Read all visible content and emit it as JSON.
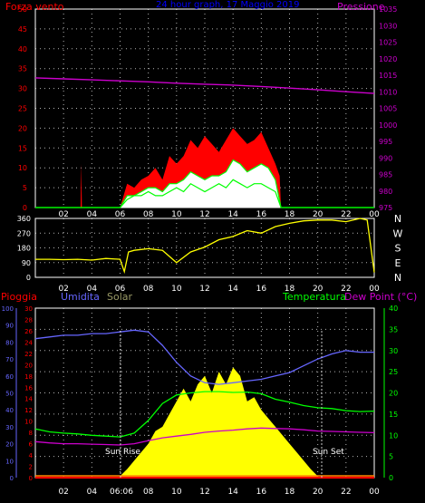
{
  "top": {
    "title": "24 hour graph, 17 Maggio 2019",
    "left_label": "Forza vento",
    "right_label": "Pressione",
    "left_ticks": [
      "0",
      "5",
      "10",
      "15",
      "20",
      "25",
      "30",
      "35",
      "40",
      "45",
      "50"
    ],
    "right_ticks": [
      "975",
      "980",
      "985",
      "990",
      "995",
      "1000",
      "1005",
      "1010",
      "1015",
      "1020",
      "1025",
      "1030",
      "1035"
    ]
  },
  "middle": {
    "left_ticks": [
      "0",
      "90",
      "180",
      "270",
      "360"
    ],
    "right_letters": [
      "N",
      "W",
      "S",
      "E",
      "N"
    ]
  },
  "bottom": {
    "label_pioggia": "Pioggia",
    "label_umidita": "Umidita",
    "label_solar": "Solar",
    "label_temperatura": "Temperatura",
    "label_dewpoint": "Dew Point (°C)",
    "rain_ticks": [
      "0",
      "2",
      "4",
      "6",
      "8",
      "10",
      "12",
      "14",
      "16",
      "18",
      "20",
      "22",
      "24",
      "26",
      "28",
      "30"
    ],
    "hum_ticks": [
      "0",
      "10",
      "20",
      "30",
      "40",
      "50",
      "60",
      "70",
      "80",
      "90",
      "100"
    ],
    "temp_ticks": [
      "0",
      "5",
      "10",
      "15",
      "20",
      "25",
      "30",
      "35",
      "40"
    ],
    "sun_rise": "Sun Rise",
    "sun_set": "Sun Set",
    "time_marker": "06:06"
  },
  "x_tick_labels": [
    "02",
    "04",
    "06",
    "08",
    "10",
    "12",
    "14",
    "16",
    "18",
    "20",
    "22",
    "00"
  ],
  "colors": {
    "background": "#000000",
    "frame": "#ffffff",
    "grid": "#ffffff",
    "wind_gust": "#ff0000",
    "wind_avg": "#00ff00",
    "wind_speed": "#ffffff",
    "pressure": "#cc00cc",
    "direction": "#ffff00",
    "humidity": "#6666ff",
    "solar": "#ffff00",
    "temperature": "#00ff00",
    "dewpoint": "#cc00cc",
    "rain": "#ff0000",
    "title": "#0000ff",
    "left_labels": "#ff0000",
    "right_labels": "#cc00cc",
    "solar_label": "#999966",
    "temp_axis": "#00ff00",
    "hum_axis": "#6666ff"
  },
  "chart_data": [
    {
      "type": "line",
      "title": "24 hour graph, 17 Maggio 2019",
      "xlabel": "",
      "ylabel": "Forza vento",
      "y2label": "Pressione",
      "x_hours": [
        0,
        24
      ],
      "ylim": [
        0,
        50
      ],
      "y2lim": [
        975,
        1035
      ],
      "series": [
        {
          "name": "Pressione",
          "axis": "right",
          "x": [
            0,
            2,
            4,
            6,
            8,
            10,
            12,
            14,
            16,
            18,
            20,
            22,
            24
          ],
          "values": [
            1014.2,
            1013.9,
            1013.6,
            1013.3,
            1013.0,
            1012.6,
            1012.3,
            1012.0,
            1011.6,
            1011.1,
            1010.6,
            1010.0,
            1009.5
          ]
        },
        {
          "name": "Forza vento",
          "axis": "left",
          "x": [
            0,
            3.2,
            3.25,
            3.3,
            6.0,
            6.5,
            7.0,
            7.5,
            8.0,
            8.5,
            9.0,
            9.5,
            10.0,
            10.5,
            11.0,
            11.5,
            12.0,
            12.5,
            13.0,
            13.5,
            14.0,
            14.5,
            15.0,
            15.5,
            16.0,
            16.5,
            17.0,
            17.3,
            17.4,
            24
          ],
          "values": [
            0,
            0,
            11,
            0,
            0,
            6,
            5,
            7,
            8,
            10,
            7,
            13,
            11,
            13,
            17,
            15,
            18,
            16,
            14,
            17,
            20,
            18,
            16,
            17,
            19,
            15,
            11,
            8,
            0,
            0
          ]
        },
        {
          "x": [
            0,
            6.0,
            6.5,
            7.0,
            7.5,
            8.0,
            8.5,
            9.0,
            9.5,
            10.0,
            10.5,
            11.0,
            11.5,
            12.0,
            12.5,
            13.0,
            13.5,
            14.0,
            14.5,
            15.0,
            15.5,
            16.0,
            16.5,
            17.0,
            17.4,
            24
          ],
          "values": [
            0,
            0,
            3,
            3,
            4,
            5,
            5,
            4,
            6,
            6,
            7,
            9,
            8,
            7,
            8,
            8,
            9,
            12,
            11,
            9,
            10,
            11,
            10,
            7,
            0,
            0
          ]
        },
        {
          "x": [
            0,
            6.0,
            6.5,
            7.0,
            7.5,
            8.0,
            8.5,
            9.0,
            9.5,
            10.0,
            10.5,
            11.0,
            11.5,
            12.0,
            12.5,
            13.0,
            13.5,
            14.0,
            14.5,
            15.0,
            15.5,
            16.0,
            16.5,
            17.0,
            17.4,
            24
          ],
          "values": [
            0,
            0,
            2,
            3,
            3,
            4,
            3,
            3,
            4,
            5,
            4,
            6,
            5,
            4,
            5,
            6,
            5,
            7,
            6,
            5,
            6,
            6,
            5,
            4,
            0,
            0
          ]
        }
      ]
    },
    {
      "type": "line",
      "ylabel": "",
      "ylim": [
        0,
        360
      ],
      "y_tick_values": [
        0,
        90,
        180,
        270,
        360
      ],
      "series": [
        {
          "x": [
            0,
            1,
            2,
            3,
            4,
            5,
            6,
            6.3,
            6.6,
            7,
            8,
            9,
            10,
            11,
            12,
            13,
            14,
            15,
            16,
            17,
            18,
            19,
            20,
            21,
            22,
            23,
            23.5,
            24
          ],
          "values": [
            110,
            110,
            108,
            110,
            105,
            115,
            110,
            35,
            155,
            165,
            175,
            165,
            90,
            155,
            185,
            230,
            250,
            285,
            270,
            310,
            330,
            345,
            350,
            350,
            340,
            360,
            350,
            30
          ]
        }
      ]
    },
    {
      "type": "line",
      "xlabel": "",
      "ylabel": "Umidita",
      "y_left_inner_label": "Pioggia",
      "y2label": "Temperatura",
      "y3label": "Dew Point (°C)",
      "rain_lim": [
        0,
        30
      ],
      "humidity_lim": [
        0,
        100
      ],
      "temp_lim": [
        0,
        40
      ],
      "series": [
        {
          "name": "Umidita",
          "axis": "humidity",
          "x": [
            0,
            1,
            2,
            3,
            4,
            5,
            6,
            7,
            8,
            9,
            10,
            11,
            12,
            13,
            14,
            15,
            16,
            17,
            18,
            19,
            20,
            21,
            22,
            23,
            24
          ],
          "values": [
            82,
            83,
            84,
            84,
            85,
            85,
            86,
            87,
            86,
            78,
            68,
            60,
            56,
            55,
            56,
            57,
            58,
            60,
            62,
            66,
            70,
            73,
            75,
            74,
            74
          ]
        },
        {
          "name": "Temperatura",
          "axis": "temp",
          "x": [
            0,
            1,
            2,
            3,
            4,
            5,
            6,
            7,
            8,
            9,
            10,
            11,
            12,
            13,
            14,
            15,
            16,
            17,
            18,
            19,
            20,
            21,
            22,
            23,
            24
          ],
          "values": [
            11.5,
            10.8,
            10.5,
            10.3,
            10.0,
            9.8,
            9.6,
            10.5,
            13.5,
            17.5,
            19.5,
            20.0,
            20.3,
            20.3,
            20.1,
            20.2,
            19.8,
            18.5,
            17.8,
            17.0,
            16.5,
            16.3,
            15.8,
            15.6,
            15.7
          ]
        },
        {
          "name": "Dew Point (°C)",
          "axis": "temp",
          "x": [
            0,
            1,
            2,
            3,
            4,
            5,
            6,
            7,
            8,
            9,
            10,
            11,
            12,
            13,
            14,
            15,
            16,
            17,
            18,
            19,
            20,
            21,
            22,
            23,
            24
          ],
          "values": [
            8.5,
            8.2,
            8.0,
            8.0,
            7.9,
            7.8,
            7.7,
            8.0,
            8.7,
            9.4,
            9.8,
            10.2,
            10.7,
            11.0,
            11.2,
            11.5,
            11.7,
            11.6,
            11.5,
            11.3,
            11.0,
            10.9,
            10.8,
            10.7,
            10.6
          ]
        },
        {
          "name": "Solar",
          "axis": "temp",
          "area": true,
          "x": [
            5.9,
            6.5,
            7.0,
            7.5,
            8.0,
            8.5,
            9.0,
            9.5,
            10.0,
            10.5,
            11.0,
            11.5,
            12.0,
            12.5,
            13.0,
            13.5,
            14.0,
            14.5,
            15.0,
            15.5,
            16.0,
            16.5,
            17.0,
            17.5,
            18.0,
            18.5,
            19.0,
            19.5,
            20.1
          ],
          "values": [
            0,
            2,
            4,
            6,
            8,
            11,
            12,
            15,
            18,
            21,
            18,
            22,
            24,
            20,
            25,
            22,
            26,
            24,
            18,
            19,
            16,
            14,
            12,
            10,
            8,
            6,
            4,
            2,
            0
          ]
        },
        {
          "name": "Pioggia",
          "axis": "rain",
          "x": [
            0,
            24
          ],
          "values": [
            0,
            0
          ]
        }
      ]
    }
  ]
}
